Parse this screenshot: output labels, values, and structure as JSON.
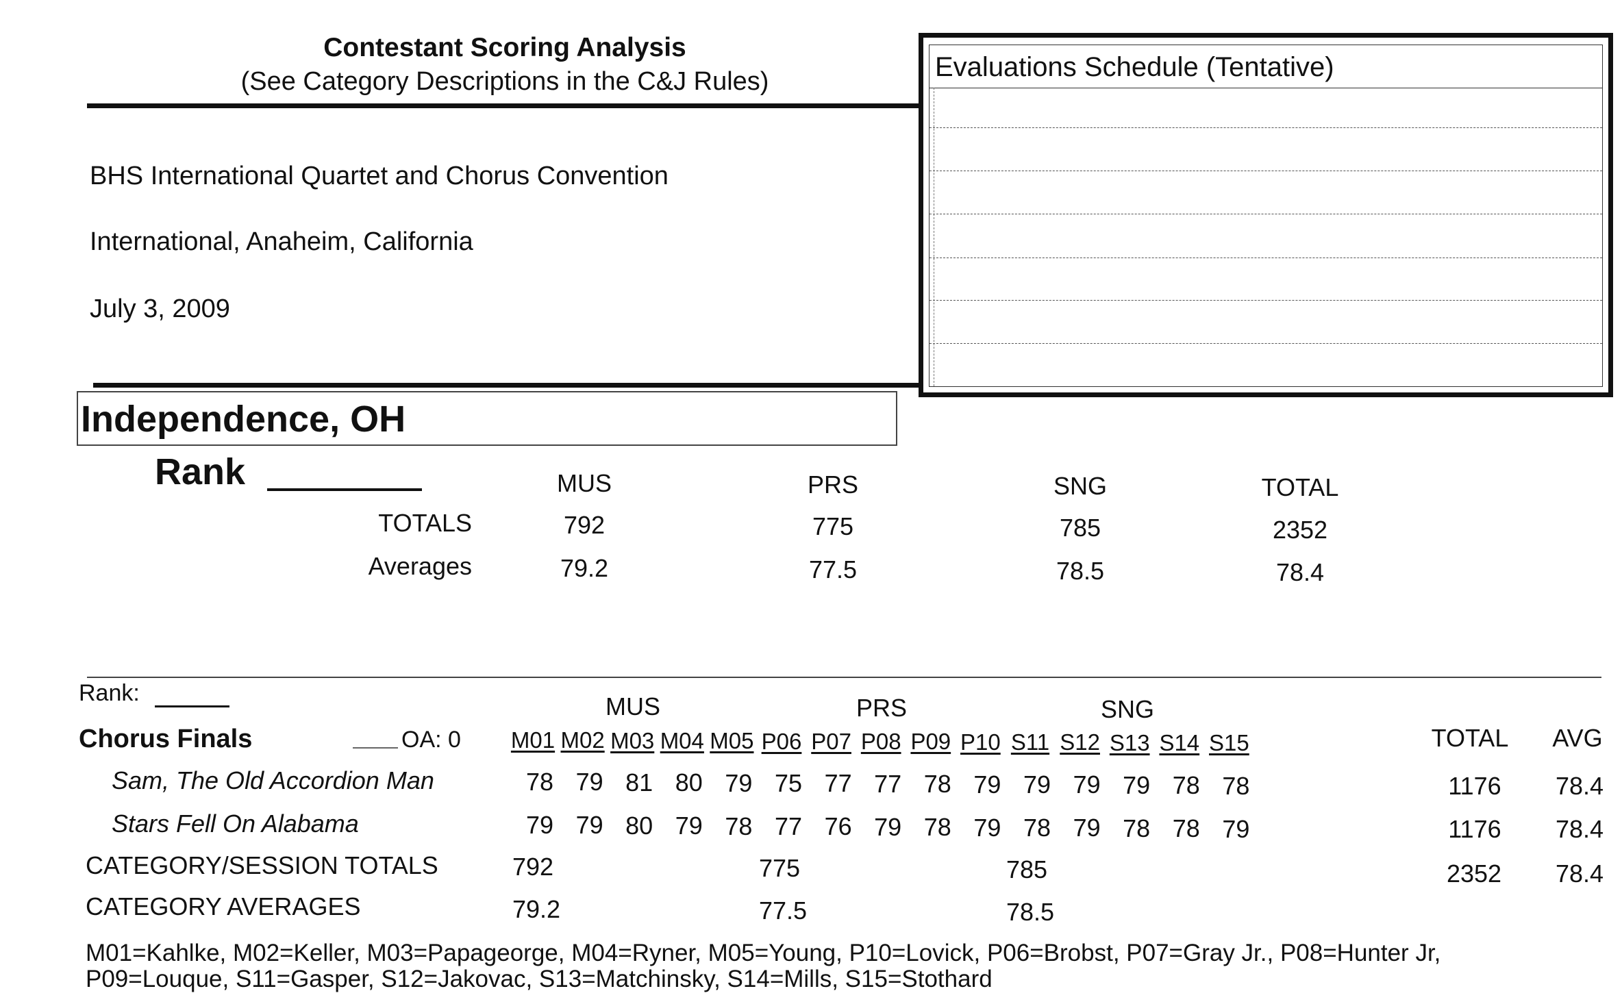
{
  "header": {
    "title": "Contestant Scoring Analysis",
    "subtitle": "(See Category Descriptions in the C&J Rules)",
    "event": "BHS International Quartet and Chorus Convention",
    "location": "International, Anaheim, California",
    "date": "July 3, 2009"
  },
  "evaluations": {
    "title": "Evaluations Schedule (Tentative)"
  },
  "contestant": {
    "name": "Independence, OH",
    "rank_label": "Rank",
    "columns": [
      "MUS",
      "PRS",
      "SNG",
      "TOTAL"
    ],
    "totals_label": "TOTALS",
    "totals": [
      "792",
      "775",
      "785",
      "2352"
    ],
    "averages_label": "Averages",
    "averages": [
      "79.2",
      "77.5",
      "78.5",
      "78.4"
    ]
  },
  "session": {
    "rank_label": "Rank:",
    "name": "Chorus Finals",
    "oa": "OA: 0",
    "categories": [
      "MUS",
      "PRS",
      "SNG"
    ],
    "judges": [
      "M01",
      "M02",
      "M03",
      "M04",
      "M05",
      "P06",
      "P07",
      "P08",
      "P09",
      "P10",
      "S11",
      "S12",
      "S13",
      "S14",
      "S15"
    ],
    "total_header": "TOTAL",
    "avg_header": "AVG",
    "songs": [
      {
        "title": "Sam, The Old Accordion Man",
        "scores": [
          "78",
          "79",
          "81",
          "80",
          "79",
          "75",
          "77",
          "77",
          "78",
          "79",
          "79",
          "79",
          "79",
          "78",
          "78"
        ],
        "total": "1176",
        "avg": "78.4"
      },
      {
        "title": "Stars Fell On Alabama",
        "scores": [
          "79",
          "79",
          "80",
          "79",
          "78",
          "77",
          "76",
          "79",
          "78",
          "79",
          "78",
          "79",
          "78",
          "78",
          "79"
        ],
        "total": "1176",
        "avg": "78.4"
      }
    ],
    "cat_totals_label": "CATEGORY/SESSION TOTALS",
    "cat_totals": [
      "792",
      "775",
      "785"
    ],
    "session_total": "2352",
    "session_avg": "78.4",
    "cat_averages_label": "CATEGORY AVERAGES",
    "cat_averages": [
      "79.2",
      "77.5",
      "78.5"
    ]
  },
  "legend": {
    "line1": "M01=Kahlke, M02=Keller, M03=Papageorge, M04=Ryner, M05=Young, P10=Lovick, P06=Brobst, P07=Gray Jr., P08=Hunter Jr,",
    "line2": "P09=Louque, S11=Gasper, S12=Jakovac, S13=Matchinsky, S14=Mills, S15=Stothard"
  }
}
